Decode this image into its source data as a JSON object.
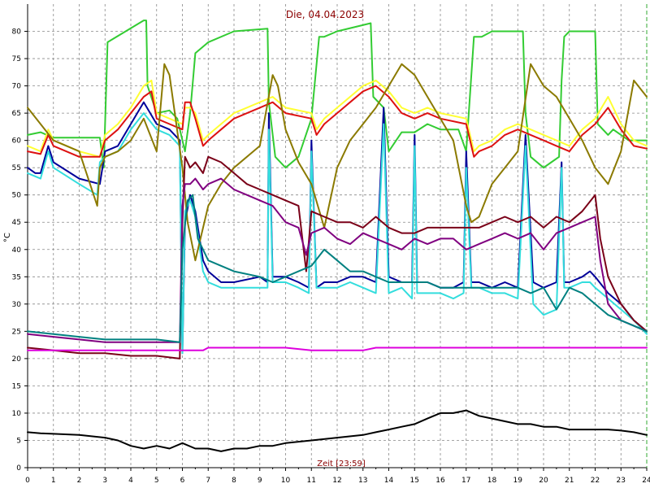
{
  "chart_data": {
    "type": "line",
    "title": "Die, 04.04.2023",
    "ylabel": "°C",
    "xlabel": "Zeit [23:59]",
    "xlim": [
      0,
      24
    ],
    "ylim": [
      0,
      85
    ],
    "x_ticks": [
      "0",
      "1",
      "2",
      "3",
      "4",
      "5",
      "6",
      "7",
      "8",
      "9",
      "10",
      "11",
      "12",
      "13",
      "14",
      "15",
      "16",
      "17",
      "18",
      "19",
      "20",
      "21",
      "22",
      "23",
      "24"
    ],
    "y_ticks": [
      "0",
      "5",
      "10",
      "15",
      "20",
      "25",
      "30",
      "35",
      "40",
      "45",
      "50",
      "55",
      "60",
      "65",
      "70",
      "75",
      "80"
    ],
    "grid": true,
    "legend": "none",
    "series": [
      {
        "color": "#33cc33",
        "x": [
          0,
          0.5,
          1,
          2.8,
          2.95,
          3.1,
          4.5,
          4.6,
          4.65,
          5,
          5.5,
          5.8,
          6.1,
          6.3,
          6.5,
          7,
          8,
          9.3,
          9.35,
          9.6,
          10,
          10.5,
          11,
          11.3,
          11.5,
          12,
          13.3,
          13.4,
          13.8,
          14,
          14.5,
          15,
          15.5,
          16,
          16.7,
          17,
          17.3,
          17.6,
          18,
          19.2,
          19.3,
          19.5,
          20,
          20.3,
          20.6,
          20.7,
          20.8,
          21,
          22,
          22.1,
          22.5,
          22.7,
          23,
          23.3,
          24
        ],
        "values": [
          61,
          61.5,
          60.5,
          60.5,
          55,
          78,
          82,
          82,
          70,
          65,
          65.5,
          64,
          58,
          65,
          76,
          78,
          80,
          80.5,
          67,
          57,
          55,
          57,
          64,
          79,
          79,
          80,
          81.5,
          68,
          66,
          58,
          61.5,
          61.5,
          63,
          62,
          62,
          58,
          79,
          79,
          80,
          80,
          65,
          57,
          55,
          56,
          57,
          71,
          79,
          80,
          80,
          63,
          61,
          62,
          61,
          60,
          60
        ]
      },
      {
        "color": "#ffff33",
        "x": [
          0,
          0.5,
          0.8,
          1,
          2,
          2.8,
          3,
          3.5,
          4,
          4.5,
          4.8,
          5,
          5.5,
          6,
          6.1,
          6.3,
          6.5,
          6.8,
          7,
          7.5,
          8,
          9,
          9.5,
          10,
          11,
          11.2,
          11.5,
          12,
          12.5,
          13,
          13.5,
          14,
          14.5,
          15,
          15.5,
          16,
          17,
          17.3,
          17.5,
          18,
          18.5,
          19,
          19.5,
          20,
          20.5,
          21,
          21.5,
          22,
          22.5,
          23,
          23.5,
          24
        ],
        "values": [
          59,
          58,
          62,
          60,
          58,
          57,
          61,
          63,
          66,
          70,
          71,
          65,
          64,
          63,
          66,
          66,
          65,
          60,
          61,
          63,
          65,
          67,
          68,
          66,
          65,
          62,
          64,
          66,
          68,
          70,
          71,
          69,
          66,
          65,
          66,
          65,
          64,
          58,
          59,
          60,
          62,
          63,
          62,
          61,
          60,
          59,
          62,
          64,
          68,
          63,
          60,
          59
        ]
      },
      {
        "color": "#dd1111",
        "x": [
          0,
          0.5,
          0.8,
          1,
          2,
          2.8,
          3,
          3.5,
          4,
          4.5,
          4.8,
          5,
          5.5,
          6,
          6.1,
          6.3,
          6.5,
          6.8,
          7,
          7.5,
          8,
          9,
          9.5,
          10,
          11,
          11.2,
          11.5,
          12,
          12.5,
          13,
          13.5,
          14,
          14.5,
          15,
          15.5,
          16,
          17,
          17.3,
          17.5,
          18,
          18.5,
          19,
          19.5,
          20,
          20.5,
          21,
          21.5,
          22,
          22.5,
          23,
          23.5,
          24
        ],
        "values": [
          58,
          57.5,
          61,
          59,
          57,
          57,
          60,
          62,
          65,
          68,
          69,
          64,
          63,
          62,
          67,
          67,
          64,
          59,
          60,
          62,
          64,
          66,
          67,
          65,
          64,
          61,
          63,
          65,
          67,
          69,
          70,
          68,
          65,
          64,
          65,
          64,
          63,
          57,
          58,
          59,
          61,
          62,
          61,
          60,
          59,
          58,
          61,
          63,
          66,
          62,
          59,
          58.5
        ]
      },
      {
        "color": "#000099",
        "x": [
          0,
          0.3,
          0.5,
          0.8,
          1,
          2,
          2.8,
          3,
          3.5,
          4,
          4.5,
          5,
          5.5,
          5.9,
          6,
          6.1,
          6.3,
          6.5,
          6.8,
          7,
          7.5,
          8,
          9,
          9.3,
          9.35,
          9.5,
          10,
          10.5,
          10.9,
          11,
          11.2,
          11.5,
          12,
          12.5,
          13,
          13.5,
          13.8,
          14,
          14.5,
          14.9,
          15,
          15.1,
          15.5,
          16,
          16.5,
          16.9,
          17,
          17.2,
          17.5,
          18,
          18.5,
          19,
          19.3,
          19.6,
          20,
          20.5,
          20.7,
          20.8,
          21,
          21.5,
          21.8,
          22,
          22.5,
          23,
          23.5,
          24
        ],
        "values": [
          55,
          54,
          54,
          59,
          56,
          53,
          52,
          58,
          59,
          63,
          67,
          63,
          62,
          60,
          21,
          45,
          50,
          47,
          38,
          36,
          34,
          34,
          35,
          34,
          65,
          35,
          35,
          34,
          33,
          60,
          33,
          34,
          34,
          35,
          35,
          34,
          66,
          35,
          34,
          34,
          61,
          34,
          34,
          33,
          33,
          34,
          58,
          34,
          34,
          33,
          34,
          33,
          61,
          34,
          33,
          34,
          56,
          34,
          34,
          35,
          36,
          35,
          32,
          30,
          27,
          25
        ]
      },
      {
        "color": "#33dddd",
        "x": [
          0,
          0.5,
          0.8,
          1,
          2,
          2.7,
          2.8,
          3,
          3.5,
          4,
          4.5,
          5,
          5.5,
          5.9,
          6,
          6.1,
          6.3,
          6.5,
          6.8,
          7,
          7.5,
          8,
          9,
          9.3,
          9.35,
          9.5,
          10,
          10.5,
          10.9,
          11,
          11.2,
          11.5,
          12,
          12.5,
          13,
          13.5,
          13.8,
          14,
          14.5,
          14.9,
          15,
          15.1,
          15.5,
          16,
          16.5,
          16.9,
          17,
          17.2,
          17.5,
          18,
          18.5,
          19,
          19.3,
          19.6,
          20,
          20.5,
          20.7,
          20.8,
          21,
          21.5,
          21.8,
          22,
          22.5,
          23,
          23.5,
          24
        ],
        "values": [
          54,
          53,
          58,
          55,
          52,
          50,
          56,
          57,
          58,
          62,
          65,
          62,
          61,
          59,
          21,
          47,
          49,
          46,
          36,
          34,
          33,
          33,
          33,
          33,
          62,
          34,
          34,
          33,
          32,
          58,
          33,
          33,
          33,
          34,
          33,
          32,
          63,
          32,
          33,
          31,
          59,
          32,
          32,
          32,
          31,
          32,
          55,
          33,
          33,
          32,
          32,
          31,
          59,
          30,
          28,
          29,
          55,
          33,
          33,
          34,
          34,
          33,
          31,
          29,
          27,
          24.5
        ]
      },
      {
        "color": "#8b7a00",
        "x": [
          0,
          0.5,
          1,
          2,
          2.7,
          2.8,
          3,
          3.5,
          4,
          4.5,
          5,
          5.3,
          5.5,
          6,
          6.1,
          6.2,
          6.5,
          7,
          7.5,
          8,
          9,
          9.5,
          9.7,
          10,
          10.5,
          11,
          11.5,
          12,
          12.5,
          13,
          13.5,
          14,
          14.5,
          15,
          15.5,
          16,
          16.5,
          17,
          17.2,
          17.5,
          18,
          18.5,
          19,
          19.5,
          20,
          20.5,
          21,
          21.5,
          22,
          22.5,
          23,
          23.5,
          24
        ],
        "values": [
          66,
          63,
          60,
          58,
          48,
          55,
          57,
          58,
          60,
          64,
          58,
          74,
          72,
          55,
          50,
          45,
          38,
          48,
          52,
          55,
          59,
          72,
          70,
          62,
          56,
          52,
          44,
          55,
          60,
          63,
          66,
          70,
          74,
          72,
          68,
          64,
          60,
          48,
          45,
          46,
          52,
          55,
          58,
          74,
          70,
          68,
          64,
          60,
          55,
          52,
          58,
          71,
          68
        ]
      },
      {
        "color": "#7a0018",
        "x": [
          0,
          1,
          2,
          3,
          4,
          5,
          5.9,
          6,
          6.1,
          6.3,
          6.5,
          6.8,
          7,
          7.5,
          8,
          8.5,
          9,
          9.5,
          10,
          10.5,
          10.8,
          11,
          11.5,
          12,
          12.5,
          13,
          13.5,
          14,
          14.5,
          15,
          15.5,
          16,
          16.5,
          17,
          17.5,
          18,
          18.5,
          19,
          19.5,
          20,
          20.5,
          21,
          21.5,
          22,
          22.2,
          22.5,
          23,
          23.5,
          24
        ],
        "values": [
          22,
          21.5,
          21,
          21,
          20.5,
          20.5,
          20,
          45,
          57,
          55,
          56,
          54,
          57,
          56,
          54,
          52,
          51,
          50,
          49,
          48,
          36,
          47,
          46,
          45,
          45,
          44,
          46,
          44,
          43,
          43,
          44,
          44,
          44,
          44,
          44,
          45,
          46,
          45,
          46,
          44,
          46,
          45,
          47,
          50,
          42,
          35,
          30,
          27,
          25
        ]
      },
      {
        "color": "#800080",
        "x": [
          0,
          1,
          2,
          3,
          4,
          5,
          5.9,
          6,
          6.1,
          6.3,
          6.5,
          6.8,
          7,
          7.5,
          8,
          8.5,
          9,
          9.5,
          10,
          10.5,
          10.8,
          11,
          11.5,
          12,
          12.5,
          13,
          13.5,
          14,
          14.5,
          15,
          15.5,
          16,
          16.5,
          17,
          17.5,
          18,
          18.5,
          19,
          19.5,
          20,
          20.5,
          21,
          21.5,
          22,
          22.2,
          22.5,
          23,
          23.5,
          24
        ],
        "values": [
          24.5,
          24,
          23.5,
          23,
          23,
          23,
          23,
          48,
          52,
          52,
          53,
          51,
          52,
          53,
          51,
          50,
          49,
          48,
          45,
          44,
          39,
          43,
          44,
          42,
          41,
          43,
          42,
          41,
          40,
          42,
          41,
          42,
          42,
          40,
          41,
          42,
          43,
          42,
          43,
          40,
          43,
          44,
          45,
          46,
          38,
          30,
          27,
          26,
          25
        ]
      },
      {
        "color": "#008080",
        "x": [
          0,
          1,
          2,
          3,
          4,
          5,
          5.9,
          6,
          6.2,
          6.4,
          6.6,
          7,
          8,
          9,
          9.5,
          10,
          10.5,
          11,
          11.5,
          12,
          12.5,
          13,
          13.5,
          14,
          14.5,
          15,
          15.5,
          16,
          17,
          18,
          19,
          19.5,
          20,
          20.5,
          21,
          21.5,
          22,
          22.5,
          23,
          23.5,
          24
        ],
        "values": [
          25,
          24.5,
          24,
          23.5,
          23.5,
          23.5,
          23,
          40,
          49,
          50,
          42,
          38,
          36,
          35,
          34,
          35,
          36,
          37,
          40,
          38,
          36,
          36,
          35,
          34,
          34,
          34,
          34,
          33,
          33,
          33,
          33,
          32,
          33,
          29,
          33,
          32,
          30,
          28,
          27,
          26,
          25
        ]
      },
      {
        "color": "#dd00dd",
        "x": [
          0,
          2,
          4,
          5,
          6,
          6.5,
          6.8,
          7,
          8,
          10,
          11,
          12,
          13,
          13.5,
          14,
          16,
          18,
          20,
          22,
          24
        ],
        "values": [
          21.5,
          21.5,
          21.5,
          21.5,
          21.5,
          21.5,
          21.5,
          22,
          22,
          22,
          21.5,
          21.5,
          21.5,
          22,
          22,
          22,
          22,
          22,
          22,
          22
        ]
      },
      {
        "color": "#000000",
        "x": [
          0,
          0.5,
          1,
          2,
          3,
          3.5,
          4,
          4.5,
          5,
          5.5,
          6,
          6.5,
          7,
          7.5,
          8,
          8.5,
          9,
          9.5,
          10,
          11,
          12,
          13,
          13.5,
          14,
          14.5,
          15,
          15.5,
          16,
          16.5,
          17,
          17.5,
          18,
          18.5,
          19,
          19.5,
          20,
          20.5,
          21,
          21.5,
          22,
          22.5,
          23,
          23.5,
          24
        ],
        "values": [
          6.5,
          6.3,
          6.2,
          6,
          5.5,
          5,
          4,
          3.5,
          4,
          3.5,
          4.5,
          3.5,
          3.5,
          3,
          3.5,
          3.5,
          4,
          4,
          4.5,
          5,
          5.5,
          6,
          6.5,
          7,
          7.5,
          8,
          9,
          10,
          10,
          10.5,
          9.5,
          9,
          8.5,
          8,
          8,
          7.5,
          7.5,
          7,
          7,
          7,
          7,
          6.8,
          6.5,
          6
        ]
      }
    ]
  }
}
